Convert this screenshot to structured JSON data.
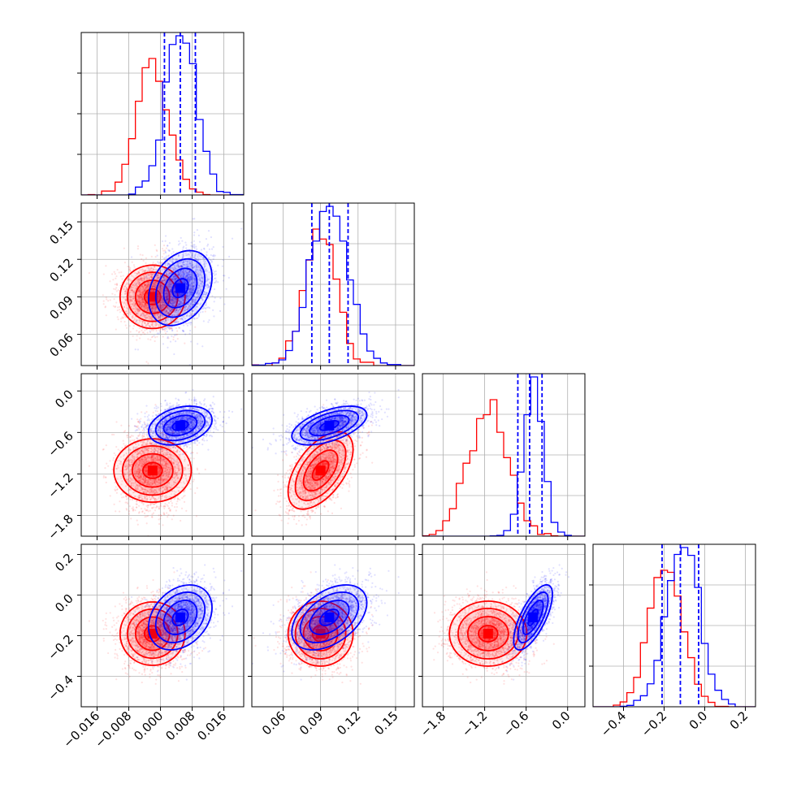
{
  "chart_data": {
    "type": "corner",
    "grid": true,
    "params": [
      {
        "range": [
          -0.02,
          0.021
        ],
        "ticks": [
          -0.016,
          -0.008,
          0.0,
          0.008,
          0.016
        ],
        "tick_labels": [
          "−0.016",
          "−0.008",
          "0.000",
          "0.008",
          "0.016"
        ]
      },
      {
        "range": [
          0.035,
          0.165
        ],
        "ticks": [
          0.06,
          0.09,
          0.12,
          0.15
        ],
        "tick_labels": [
          "0.06",
          "0.09",
          "0.12",
          "0.15"
        ]
      },
      {
        "range": [
          -2.1,
          0.25
        ],
        "ticks": [
          -1.8,
          -1.2,
          -0.6,
          0.0
        ],
        "tick_labels": [
          "−1.8",
          "−1.2",
          "−0.6",
          "0.0"
        ]
      },
      {
        "range": [
          -0.55,
          0.25
        ],
        "ticks": [
          -0.4,
          -0.2,
          0.0,
          0.2
        ],
        "tick_labels": [
          "−0.4",
          "−0.2",
          "0.0",
          "0.2"
        ]
      }
    ],
    "series": [
      {
        "color": "#ff0000",
        "means": [
          -0.002,
          0.09,
          -1.15,
          -0.19
        ],
        "sds": [
          0.004,
          0.013,
          0.28,
          0.08
        ],
        "correlations": {
          "0-1": 0.0,
          "0-2": 0.0,
          "0-3": 0.0,
          "1-2": 0.55,
          "1-3": 0.0,
          "2-3": 0.0
        },
        "hist_peak_fraction": 0.84
      },
      {
        "color": "#0000ff",
        "means": [
          0.005,
          0.097,
          -0.5,
          -0.11
        ],
        "sds": [
          0.004,
          0.015,
          0.14,
          0.08
        ],
        "correlations": {
          "0-1": 0.3,
          "0-2": 0.3,
          "0-3": 0.3,
          "1-2": 0.55,
          "1-3": 0.45,
          "2-3": 0.7
        },
        "hist_peak_fraction": 0.98,
        "quantiles": [
          [
            0.001,
            0.005,
            0.0088
          ],
          [
            0.083,
            0.097,
            0.112
          ],
          [
            -0.72,
            -0.55,
            -0.37
          ],
          [
            -0.21,
            -0.12,
            -0.03
          ]
        ]
      }
    ]
  }
}
